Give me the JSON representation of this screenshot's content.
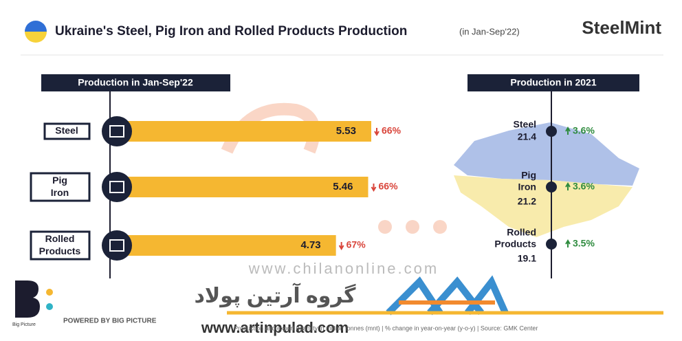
{
  "brand": "SteelMint",
  "chart_data": {
    "type": "bar",
    "title": "Ukraine's Steel, Pig Iron and Rolled Products Production",
    "subtitle": "(in Jan-Sep'22)",
    "panel_title": "Production in Jan-Sep'22",
    "categories": [
      "Steel",
      "Pig Iron",
      "Rolled Products"
    ],
    "values": [
      5.53,
      5.46,
      4.73
    ],
    "change_labels": [
      "66%",
      "66%",
      "67%"
    ],
    "color": "#f5b731"
  },
  "production_2021": {
    "title": "Production in 2021",
    "items": [
      {
        "label": "Steel",
        "value": 21.4,
        "change": "3.6%"
      },
      {
        "label": "Pig Iron",
        "value": 21.2,
        "change": "3.6%"
      },
      {
        "label": "Rolled Products",
        "value": 19.1,
        "change": "3.5%"
      }
    ]
  },
  "footer": {
    "logo_text": "Big Picture",
    "powered_by": "POWERED BY BIG PICTURE",
    "note": "Production and export quantity in million tonnes (mnt) | % change in year-on-year (y-o-y) | Source: GMK Center"
  },
  "watermarks": {
    "site1": "www.chilanonline.com",
    "group": "گروه آرتین پولاد",
    "site2": "www.artinpulad.com"
  }
}
